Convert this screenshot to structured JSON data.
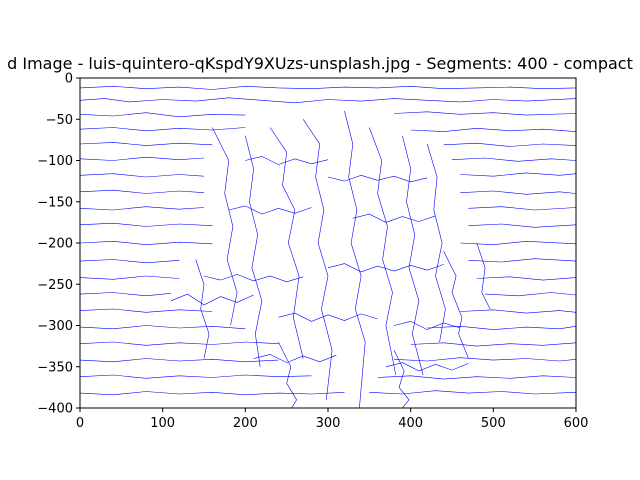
{
  "chart_data": {
    "type": "line",
    "title": "d Image - luis-quintero-qKspdY9XUzs-unsplash.jpg - Segments: 400 - compact",
    "xlabel": "",
    "ylabel": "",
    "xlim": [
      0,
      600
    ],
    "ylim": [
      -400,
      0
    ],
    "x_ticks": [
      0,
      100,
      200,
      300,
      400,
      500,
      600
    ],
    "y_ticks": [
      0,
      -50,
      -100,
      -150,
      -200,
      -250,
      -300,
      -350,
      -400
    ],
    "grid": false,
    "series_color": "#0000ff",
    "series": [
      {
        "x": [
          0,
          40,
          80,
          120,
          160,
          200,
          240,
          280,
          320,
          360,
          400,
          440,
          480,
          520,
          560,
          600
        ],
        "y": [
          -12,
          -10,
          -13,
          -11,
          -14,
          -10,
          -12,
          -13,
          -11,
          -12,
          -10,
          -13,
          -12,
          -11,
          -13,
          -12
        ]
      },
      {
        "x": [
          0,
          30,
          60,
          100,
          140,
          180,
          220,
          260,
          300,
          340,
          380,
          420,
          460,
          500,
          540,
          600
        ],
        "y": [
          -27,
          -25,
          -29,
          -26,
          -28,
          -24,
          -27,
          -30,
          -26,
          -28,
          -25,
          -27,
          -29,
          -26,
          -28,
          -25
        ]
      },
      {
        "x": [
          0,
          40,
          80,
          120,
          160,
          200
        ],
        "y": [
          -44,
          -46,
          -42,
          -47,
          -44,
          -45
        ]
      },
      {
        "x": [
          380,
          420,
          460,
          500,
          540,
          600
        ],
        "y": [
          -43,
          -41,
          -44,
          -42,
          -45,
          -43
        ]
      },
      {
        "x": [
          0,
          40,
          80,
          120,
          160,
          200
        ],
        "y": [
          -62,
          -60,
          -64,
          -61,
          -63,
          -60
        ]
      },
      {
        "x": [
          400,
          440,
          480,
          520,
          560,
          600
        ],
        "y": [
          -63,
          -65,
          -61,
          -64,
          -62,
          -65
        ]
      },
      {
        "x": [
          0,
          40,
          80,
          120,
          160
        ],
        "y": [
          -80,
          -78,
          -82,
          -79,
          -81
        ]
      },
      {
        "x": [
          440,
          480,
          520,
          560,
          600
        ],
        "y": [
          -81,
          -79,
          -83,
          -80,
          -82
        ]
      },
      {
        "x": [
          0,
          40,
          80,
          120,
          150
        ],
        "y": [
          -98,
          -100,
          -96,
          -99,
          -97
        ]
      },
      {
        "x": [
          450,
          490,
          530,
          570,
          600
        ],
        "y": [
          -99,
          -97,
          -101,
          -98,
          -100
        ]
      },
      {
        "x": [
          0,
          40,
          80,
          120,
          150
        ],
        "y": [
          -118,
          -116,
          -120,
          -117,
          -119
        ]
      },
      {
        "x": [
          460,
          500,
          540,
          580,
          600
        ],
        "y": [
          -117,
          -119,
          -115,
          -118,
          -116
        ]
      },
      {
        "x": [
          0,
          40,
          80,
          120,
          150
        ],
        "y": [
          -138,
          -136,
          -140,
          -137,
          -139
        ]
      },
      {
        "x": [
          460,
          500,
          540,
          580,
          600
        ],
        "y": [
          -139,
          -137,
          -141,
          -138,
          -140
        ]
      },
      {
        "x": [
          0,
          40,
          80,
          120,
          150
        ],
        "y": [
          -158,
          -160,
          -156,
          -159,
          -157
        ]
      },
      {
        "x": [
          470,
          510,
          550,
          600
        ],
        "y": [
          -158,
          -156,
          -160,
          -157
        ]
      },
      {
        "x": [
          0,
          40,
          80,
          120,
          160
        ],
        "y": [
          -178,
          -176,
          -180,
          -177,
          -179
        ]
      },
      {
        "x": [
          470,
          510,
          550,
          600
        ],
        "y": [
          -179,
          -177,
          -181,
          -178
        ]
      },
      {
        "x": [
          0,
          40,
          80,
          120,
          160
        ],
        "y": [
          -200,
          -198,
          -202,
          -199,
          -201
        ]
      },
      {
        "x": [
          460,
          500,
          540,
          600
        ],
        "y": [
          -200,
          -202,
          -198,
          -201
        ]
      },
      {
        "x": [
          0,
          40,
          80,
          120
        ],
        "y": [
          -222,
          -220,
          -224,
          -221
        ]
      },
      {
        "x": [
          470,
          510,
          550,
          600
        ],
        "y": [
          -221,
          -223,
          -219,
          -222
        ]
      },
      {
        "x": [
          0,
          40,
          80,
          120
        ],
        "y": [
          -242,
          -244,
          -240,
          -243
        ]
      },
      {
        "x": [
          480,
          520,
          560,
          600
        ],
        "y": [
          -243,
          -241,
          -245,
          -242
        ]
      },
      {
        "x": [
          0,
          40,
          80,
          110
        ],
        "y": [
          -262,
          -260,
          -264,
          -261
        ]
      },
      {
        "x": [
          490,
          530,
          570,
          600
        ],
        "y": [
          -262,
          -264,
          -260,
          -263
        ]
      },
      {
        "x": [
          0,
          40,
          80,
          120,
          160
        ],
        "y": [
          -282,
          -280,
          -284,
          -281,
          -283
        ]
      },
      {
        "x": [
          460,
          500,
          540,
          580,
          600
        ],
        "y": [
          -283,
          -281,
          -285,
          -282,
          -284
        ]
      },
      {
        "x": [
          0,
          40,
          80,
          120,
          160,
          200
        ],
        "y": [
          -302,
          -304,
          -300,
          -303,
          -301,
          -304
        ]
      },
      {
        "x": [
          420,
          460,
          500,
          540,
          580,
          600
        ],
        "y": [
          -303,
          -301,
          -305,
          -302,
          -304,
          -301
        ]
      },
      {
        "x": [
          0,
          40,
          80,
          120,
          160,
          200,
          240
        ],
        "y": [
          -322,
          -320,
          -324,
          -321,
          -323,
          -320,
          -322
        ]
      },
      {
        "x": [
          400,
          440,
          480,
          520,
          560,
          600
        ],
        "y": [
          -323,
          -321,
          -325,
          -322,
          -324,
          -321
        ]
      },
      {
        "x": [
          0,
          40,
          80,
          120,
          160,
          200,
          240
        ],
        "y": [
          -342,
          -344,
          -340,
          -343,
          -341,
          -344,
          -342
        ]
      },
      {
        "x": [
          380,
          420,
          460,
          500,
          540,
          580,
          600
        ],
        "y": [
          -341,
          -343,
          -339,
          -342,
          -340,
          -343,
          -341
        ]
      },
      {
        "x": [
          0,
          40,
          80,
          120,
          160,
          200,
          240,
          280
        ],
        "y": [
          -362,
          -360,
          -364,
          -361,
          -363,
          -360,
          -362,
          -361
        ]
      },
      {
        "x": [
          360,
          400,
          440,
          480,
          520,
          560,
          600
        ],
        "y": [
          -363,
          -361,
          -365,
          -362,
          -364,
          -361,
          -363
        ]
      },
      {
        "x": [
          0,
          40,
          80,
          120,
          160,
          200,
          240,
          280,
          320
        ],
        "y": [
          -382,
          -384,
          -380,
          -383,
          -381,
          -384,
          -382,
          -383,
          -381
        ]
      },
      {
        "x": [
          350,
          390,
          430,
          470,
          510,
          550,
          600
        ],
        "y": [
          -381,
          -383,
          -379,
          -382,
          -380,
          -383,
          -381
        ]
      },
      {
        "x": [
          160,
          180,
          175,
          185,
          178,
          190,
          182
        ],
        "y": [
          -60,
          -100,
          -140,
          -180,
          -220,
          -260,
          -300
        ]
      },
      {
        "x": [
          200,
          210,
          205,
          215,
          208,
          220,
          212,
          218
        ],
        "y": [
          -70,
          -110,
          -150,
          -190,
          -230,
          -270,
          -310,
          -350
        ]
      },
      {
        "x": [
          230,
          250,
          245,
          260,
          252,
          265,
          258,
          270
        ],
        "y": [
          -60,
          -90,
          -130,
          -160,
          -200,
          -240,
          -290,
          -340
        ]
      },
      {
        "x": [
          270,
          290,
          285,
          295,
          288,
          300,
          292,
          305,
          298
        ],
        "y": [
          -50,
          -80,
          -120,
          -160,
          -200,
          -240,
          -280,
          -330,
          -390
        ]
      },
      {
        "x": [
          320,
          330,
          325,
          335,
          328,
          340,
          333,
          345,
          338
        ],
        "y": [
          -40,
          -80,
          -120,
          -160,
          -200,
          -240,
          -280,
          -320,
          -400
        ]
      },
      {
        "x": [
          350,
          365,
          360,
          372,
          366,
          378,
          370,
          382
        ],
        "y": [
          -60,
          -100,
          -140,
          -180,
          -220,
          -260,
          -300,
          -360
        ]
      },
      {
        "x": [
          390,
          400,
          395,
          405,
          398,
          410,
          402,
          415
        ],
        "y": [
          -70,
          -110,
          -150,
          -190,
          -230,
          -270,
          -310,
          -360
        ]
      },
      {
        "x": [
          420,
          432,
          428,
          438,
          430,
          442,
          435
        ],
        "y": [
          -80,
          -120,
          -160,
          -200,
          -240,
          -280,
          -320
        ]
      },
      {
        "x": [
          200,
          220,
          240,
          260,
          280,
          300
        ],
        "y": [
          -100,
          -95,
          -105,
          -98,
          -104,
          -99
        ]
      },
      {
        "x": [
          300,
          320,
          340,
          360,
          380,
          400,
          420
        ],
        "y": [
          -120,
          -125,
          -118,
          -124,
          -119,
          -126,
          -121
        ]
      },
      {
        "x": [
          180,
          200,
          220,
          240,
          260,
          280
        ],
        "y": [
          -160,
          -155,
          -165,
          -158,
          -164,
          -157
        ]
      },
      {
        "x": [
          330,
          350,
          370,
          390,
          410,
          430
        ],
        "y": [
          -170,
          -165,
          -175,
          -168,
          -174,
          -167
        ]
      },
      {
        "x": [
          150,
          170,
          190,
          210,
          230,
          250,
          270
        ],
        "y": [
          -240,
          -245,
          -238,
          -246,
          -240,
          -247,
          -241
        ]
      },
      {
        "x": [
          300,
          320,
          340,
          360,
          380,
          400,
          420,
          440
        ],
        "y": [
          -230,
          -225,
          -235,
          -228,
          -234,
          -227,
          -233,
          -226
        ]
      },
      {
        "x": [
          110,
          130,
          150,
          170,
          190,
          210
        ],
        "y": [
          -270,
          -262,
          -275,
          -265,
          -272,
          -263
        ]
      },
      {
        "x": [
          240,
          260,
          280,
          300,
          320,
          340,
          360
        ],
        "y": [
          -290,
          -285,
          -295,
          -287,
          -294,
          -286,
          -292
        ]
      },
      {
        "x": [
          380,
          400,
          420,
          440,
          460
        ],
        "y": [
          -300,
          -295,
          -305,
          -297,
          -303
        ]
      },
      {
        "x": [
          210,
          230,
          250,
          270,
          290,
          310
        ],
        "y": [
          -340,
          -335,
          -345,
          -337,
          -344,
          -336
        ]
      },
      {
        "x": [
          370,
          390,
          410,
          430,
          450,
          470
        ],
        "y": [
          -350,
          -345,
          -355,
          -347,
          -354,
          -346
        ]
      },
      {
        "x": [
          240,
          255,
          250,
          262,
          256
        ],
        "y": [
          -320,
          -350,
          -370,
          -390,
          -400
        ]
      },
      {
        "x": [
          380,
          392,
          386,
          398,
          390
        ],
        "y": [
          -330,
          -355,
          -375,
          -390,
          -400
        ]
      },
      {
        "x": [
          440,
          455,
          450,
          462,
          458,
          470
        ],
        "y": [
          -210,
          -240,
          -260,
          -290,
          -310,
          -340
        ]
      },
      {
        "x": [
          480,
          490,
          486,
          496
        ],
        "y": [
          -200,
          -230,
          -260,
          -280
        ]
      },
      {
        "x": [
          140,
          150,
          146,
          156,
          150
        ],
        "y": [
          -220,
          -250,
          -280,
          -310,
          -340
        ]
      }
    ]
  }
}
